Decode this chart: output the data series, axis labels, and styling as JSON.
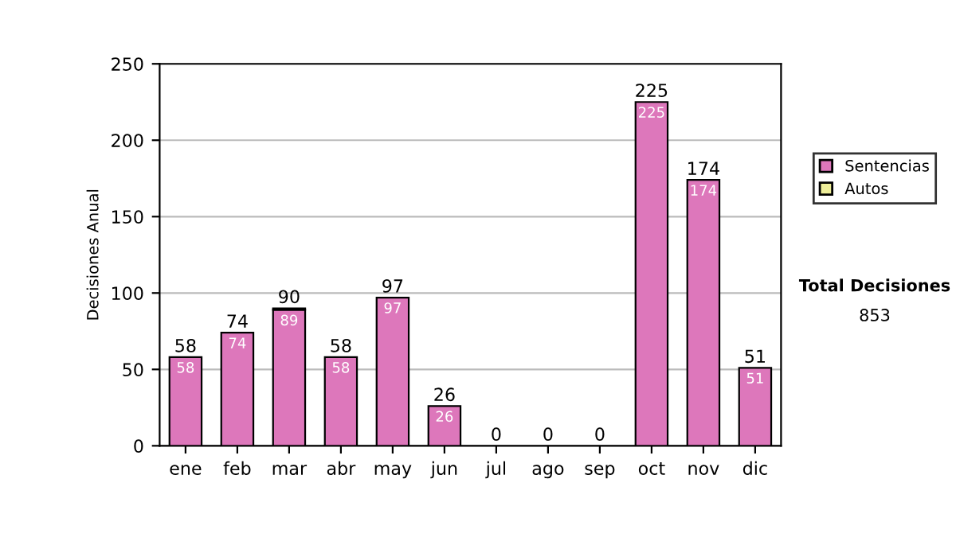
{
  "chart_data": {
    "type": "bar",
    "stacked": true,
    "ylabel": "Decisiones Anual",
    "categories": [
      "ene",
      "feb",
      "mar",
      "abr",
      "may",
      "jun",
      "jul",
      "ago",
      "sep",
      "oct",
      "nov",
      "dic"
    ],
    "series": [
      {
        "name": "Sentencias",
        "color": "#dd77bb",
        "values": [
          58,
          74,
          89,
          58,
          97,
          26,
          0,
          0,
          0,
          225,
          174,
          51
        ],
        "value_labels": [
          "58",
          "74",
          "89",
          "58",
          "97",
          "26",
          null,
          null,
          null,
          "225",
          "174",
          "51"
        ]
      },
      {
        "name": "Autos",
        "color": "#eeee99",
        "values": [
          0,
          0,
          1,
          0,
          0,
          0,
          0,
          0,
          0,
          0,
          0,
          0
        ]
      }
    ],
    "totals": [
      "58",
      "74",
      "90",
      "58",
      "97",
      "26",
      "0",
      "0",
      "0",
      "225",
      "174",
      "51"
    ],
    "ylim": [
      0,
      250
    ],
    "yticks": [
      0,
      50,
      100,
      150,
      200,
      250
    ],
    "grid": "y",
    "legend": "right",
    "annotations": [
      "Total Decisiones",
      "853"
    ]
  }
}
